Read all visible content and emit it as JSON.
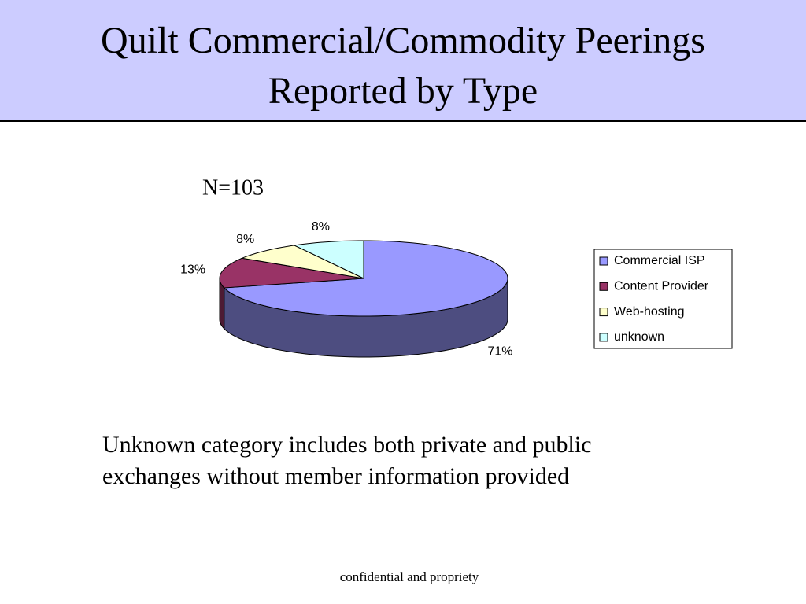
{
  "chart_data": {
    "type": "pie",
    "title": "Quilt Commercial/Commodity Peerings Reported by Type",
    "subtitle": "N=103",
    "categories": [
      "Commercial ISP",
      "Content Provider",
      "Web-hosting",
      "unknown"
    ],
    "values": [
      71,
      13,
      8,
      8
    ],
    "value_labels": [
      "71%",
      "13%",
      "8%",
      "8%"
    ],
    "colors": [
      "#9999ff",
      "#993366",
      "#ffffcc",
      "#ccffff"
    ],
    "legend": "right"
  },
  "note": "Unknown category includes both private and public exchanges without member information provided",
  "footer": "confidential and propriety"
}
